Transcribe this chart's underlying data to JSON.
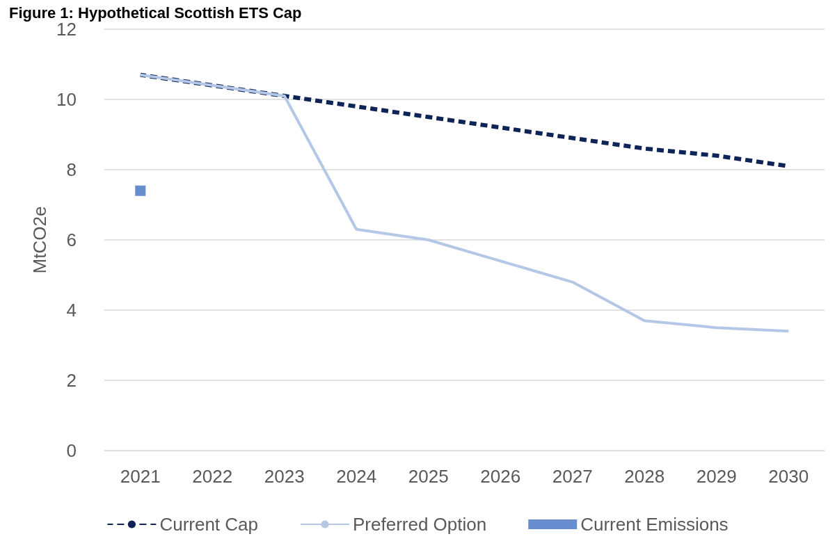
{
  "chart_data": {
    "type": "line",
    "title": "Figure 1: Hypothetical Scottish ETS Cap",
    "ylabel": "MtCO2e",
    "categories": [
      "2021",
      "2022",
      "2023",
      "2024",
      "2025",
      "2026",
      "2027",
      "2028",
      "2029",
      "2030"
    ],
    "series": [
      {
        "name": "Current Cap",
        "color": "#0e2356",
        "line_style": "dashed",
        "marker": "none",
        "values": [
          10.7,
          10.4,
          10.1,
          9.8,
          9.5,
          9.2,
          8.9,
          8.6,
          8.4,
          8.1
        ]
      },
      {
        "name": "Preferred Option",
        "color": "#b4c7e7",
        "line_style": "solid",
        "marker": "none",
        "values": [
          10.7,
          10.4,
          10.1,
          6.3,
          6.0,
          5.4,
          4.8,
          3.7,
          3.5,
          3.4
        ]
      },
      {
        "name": "Current Emissions",
        "type": "scatter",
        "color": "#4472c4",
        "marker": "square",
        "values": [
          7.4,
          null,
          null,
          null,
          null,
          null,
          null,
          null,
          null,
          null
        ]
      }
    ],
    "ylim": [
      0,
      12
    ],
    "yticks": [
      0,
      2,
      4,
      6,
      8,
      10,
      12
    ],
    "grid": "y",
    "legend": "bottom"
  }
}
